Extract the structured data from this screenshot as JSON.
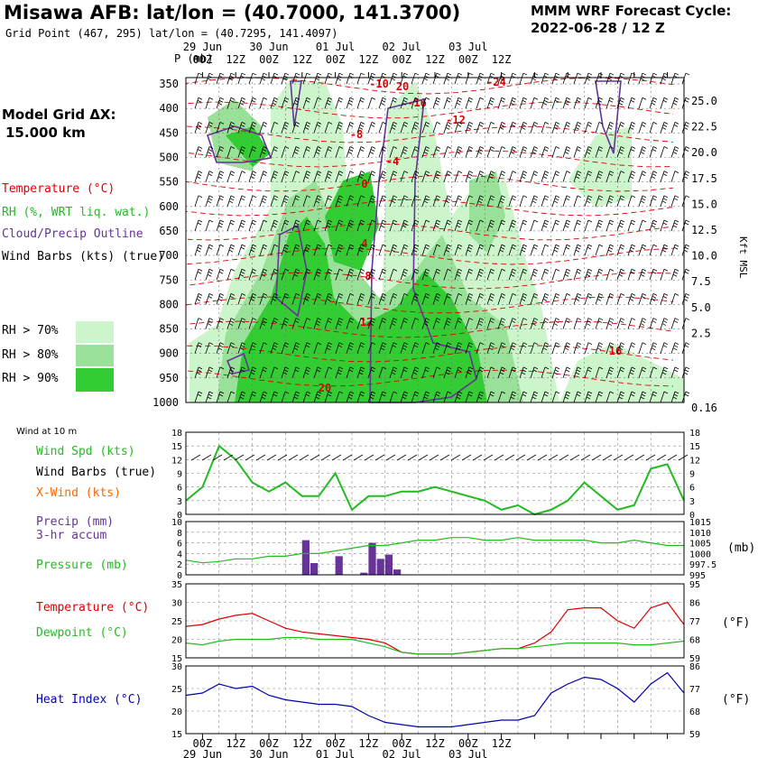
{
  "header": {
    "title": "Misawa AFB:  lat/lon = (40.7000, 141.3700)",
    "subtitle": "Grid Point (467, 295) lat/lon = (40.7295, 141.4097)",
    "forecast_line1": "MMM WRF Forecast Cycle:",
    "forecast_line2": "2022-06-28 / 12  Z"
  },
  "model_grid": {
    "line1": "Model Grid ΔX:",
    "line2": "15.000 km"
  },
  "legend": {
    "temperature": "Temperature (°C)",
    "rh": "RH (%, WRT liq. wat.)",
    "cloud": "Cloud/Precip Outline",
    "wind": "Wind Barbs (kts) (true)",
    "rh70": "RH > 70%",
    "rh80": "RH > 80%",
    "rh90": "RH > 90%",
    "wind10m": "Wind at 10 m",
    "wind_spd": "Wind Spd (kts)",
    "wind_barbs": "Wind Barbs (true)",
    "xwind": "X-Wind (kts)",
    "precip": "Precip (mm)",
    "precip2": "3-hr accum",
    "pressure": "Pressure (mb)",
    "temp": "Temperature (°C)",
    "dewpoint": "Dewpoint (°C)",
    "heat_index": "Heat Index (°C)",
    "mb_unit": "(mb)",
    "f_unit": "(°F)",
    "f_unit2": "(°F)"
  },
  "colors": {
    "temperature": "#dd0000",
    "rh": "#22bb22",
    "cloud": "#663399",
    "heat_index": "#0000aa",
    "rh70": "#ccf5cc",
    "rh80": "#99e099",
    "rh90": "#33cc33"
  },
  "chart_data": [
    {
      "type": "heatmap",
      "name": "sounding",
      "ylabel": "P (mb)",
      "right_label": "Kft MSL",
      "time_labels": [
        "00Z",
        "12Z",
        "00Z",
        "12Z",
        "00Z",
        "12Z",
        "00Z",
        "12Z",
        "00Z",
        "12Z"
      ],
      "day_labels": [
        "29 Jun",
        "30 Jun",
        "01 Jul",
        "02 Jul",
        "03 Jul"
      ],
      "pressure_ticks": [
        350,
        400,
        450,
        500,
        550,
        600,
        650,
        700,
        750,
        800,
        850,
        900,
        950,
        1000
      ],
      "kft_ticks": [
        "25.0",
        "22.5",
        "20.0",
        "17.5",
        "15.0",
        "12.5",
        "10.0",
        "7.5",
        "5.0",
        "2.5",
        "0.16"
      ],
      "temp_labels": [
        "-10",
        "-16",
        "-24",
        "-12",
        "-8",
        "-4",
        "0",
        "4",
        "8",
        "12",
        "16",
        "20",
        "20"
      ]
    },
    {
      "type": "line",
      "name": "wind",
      "ylim": [
        0,
        18
      ],
      "yticks": [
        0,
        3,
        6,
        9,
        12,
        15,
        18
      ],
      "x_hours": [
        0,
        6,
        12,
        18,
        24,
        30,
        36,
        42,
        48,
        54,
        60,
        66,
        72,
        78,
        84,
        90,
        96,
        102,
        108,
        114,
        120,
        126,
        132,
        138,
        144,
        150,
        156,
        162,
        168,
        174,
        180
      ],
      "speed": [
        3,
        6,
        15,
        12,
        7,
        5,
        7,
        4,
        4,
        9,
        1,
        4,
        4,
        5,
        5,
        6,
        5,
        4,
        3,
        1,
        2,
        0,
        1,
        3,
        7,
        4,
        1,
        2,
        10,
        11,
        3
      ]
    },
    {
      "type": "bar",
      "name": "precip_pressure",
      "precip_ylim": [
        0,
        10
      ],
      "precip_ticks": [
        "0.0",
        "2.0",
        "4.0",
        "6.0",
        "8.0",
        "10.0"
      ],
      "pressure_ticks": [
        "995",
        "1000",
        "1005",
        "1010",
        "1015"
      ],
      "precip_hours": [
        42,
        45,
        54,
        63,
        66,
        69,
        72,
        75
      ],
      "precip_mm": [
        6.5,
        2.2,
        3.5,
        0.4,
        6.0,
        3.0,
        3.8,
        1.0
      ],
      "pressure_mb": [
        1000.5,
        999.5,
        1000,
        1001,
        1001,
        1002,
        1002,
        1003,
        1003,
        1004,
        1005,
        1006,
        1006,
        1007,
        1008,
        1008,
        1009,
        1009,
        1008,
        1008,
        1009,
        1008,
        1008,
        1008,
        1008,
        1007,
        1007,
        1008,
        1007,
        1006,
        1006
      ]
    },
    {
      "type": "line",
      "name": "temp_dew",
      "ylim": [
        15,
        35
      ],
      "yticks": [
        15,
        20,
        25,
        30,
        35
      ],
      "f_ticks": [
        59,
        68,
        77,
        86,
        95
      ],
      "temperature": [
        23.5,
        24,
        25.5,
        26.5,
        27,
        25,
        23,
        22,
        21.5,
        21,
        20.5,
        20,
        19,
        16.5,
        16,
        16,
        16,
        16.5,
        17,
        17.5,
        17.5,
        19,
        22,
        28,
        28.5,
        28.5,
        25,
        23,
        28.5,
        30,
        24
      ],
      "dewpoint": [
        19,
        18.5,
        19.5,
        20,
        20,
        20,
        20.5,
        20.5,
        20,
        20,
        20,
        19,
        18,
        16.5,
        16,
        16,
        16,
        16.5,
        17,
        17.5,
        17.5,
        18,
        18.5,
        19,
        19,
        19,
        19,
        18.5,
        18.5,
        19,
        19.5
      ]
    },
    {
      "type": "line",
      "name": "heat_index",
      "ylim": [
        15,
        30
      ],
      "yticks": [
        15,
        20,
        25,
        30
      ],
      "f_ticks": [
        59,
        68,
        77,
        86
      ],
      "heat_index": [
        23.5,
        24,
        26,
        25,
        25.5,
        23.5,
        22.5,
        22,
        21.5,
        21.5,
        21,
        19,
        17.5,
        17,
        16.5,
        16.5,
        16.5,
        17,
        17.5,
        18,
        18,
        19,
        24,
        26,
        27.5,
        27,
        25,
        22,
        26,
        28.5,
        24
      ]
    }
  ]
}
